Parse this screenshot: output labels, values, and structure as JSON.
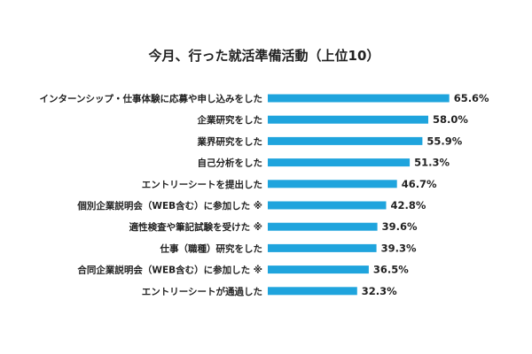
{
  "chart_data": {
    "type": "bar",
    "orientation": "horizontal",
    "title": "今月、行った就活準備活動（上位10）",
    "categories": [
      "インターンシップ・仕事体験に応募や申し込みをした",
      "企業研究をした",
      "業界研究をした",
      "自己分析をした",
      "エントリーシートを提出した",
      "個別企業説明会（WEB含む）に参加した ※",
      "適性検査や筆記試験を受けた ※",
      "仕事（職種）研究をした",
      "合同企業説明会（WEB含む）に参加した ※",
      "エントリーシートが通過した"
    ],
    "values": [
      65.6,
      58.0,
      55.9,
      51.3,
      46.7,
      42.8,
      39.6,
      39.3,
      36.5,
      32.3
    ],
    "value_labels": [
      "65.6%",
      "58.0%",
      "55.9%",
      "51.3%",
      "46.7%",
      "42.8%",
      "39.6%",
      "39.3%",
      "36.5%",
      "32.3%"
    ],
    "unit": "%",
    "grid": false,
    "legend": "none",
    "bar_color": "#1fa4dd"
  }
}
